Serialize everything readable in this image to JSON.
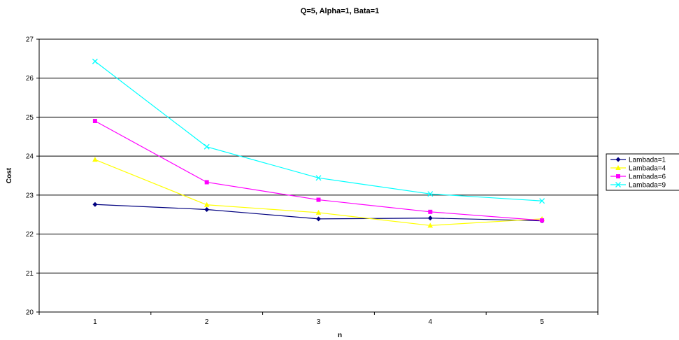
{
  "chart_data": {
    "type": "line",
    "title": "Q=5, Alpha=1, Bata=1",
    "xlabel": "n",
    "ylabel": "Cost",
    "x": [
      1,
      2,
      3,
      4,
      5
    ],
    "ylim": [
      20,
      27
    ],
    "yticks": [
      20,
      21,
      22,
      23,
      24,
      25,
      26,
      27
    ],
    "grid": "horizontal",
    "legend_position": "right",
    "series": [
      {
        "name": "Lambada=1",
        "color": "#00007f",
        "marker": "diamond",
        "values": [
          22.76,
          22.63,
          22.39,
          22.41,
          22.34
        ]
      },
      {
        "name": "Lambada=4",
        "color": "#ffff00",
        "marker": "triangle",
        "values": [
          23.91,
          22.75,
          22.55,
          22.22,
          22.39
        ]
      },
      {
        "name": "Lambada=6",
        "color": "#ff00ff",
        "marker": "square",
        "values": [
          24.9,
          23.33,
          22.88,
          22.57,
          22.35
        ]
      },
      {
        "name": "Lambada=9",
        "color": "#00ffff",
        "marker": "x",
        "values": [
          26.43,
          24.24,
          23.44,
          23.03,
          22.85
        ]
      }
    ]
  }
}
